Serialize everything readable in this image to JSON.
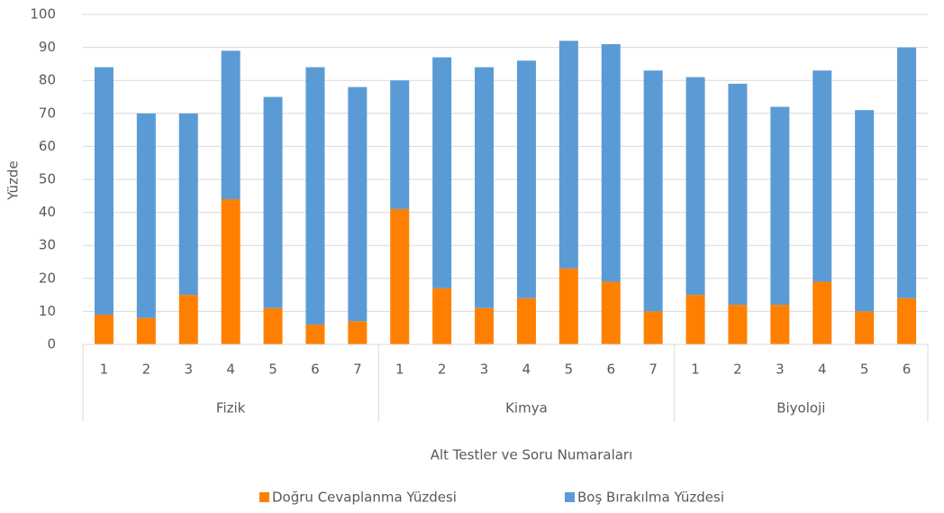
{
  "chart_data": {
    "type": "stacked_bar",
    "x_label": "Alt Testler ve Soru Numaraları",
    "y_label": "Yüzde",
    "groups": [
      {
        "name": "Fizik",
        "categories": [
          "1",
          "2",
          "3",
          "4",
          "5",
          "6",
          "7"
        ]
      },
      {
        "name": "Kimya",
        "categories": [
          "1",
          "2",
          "3",
          "4",
          "5",
          "6",
          "7"
        ]
      },
      {
        "name": "Biyoloji",
        "categories": [
          "1",
          "2",
          "3",
          "4",
          "5",
          "6"
        ]
      }
    ],
    "series": [
      {
        "name": "Doğru Cevaplanma Yüzdesi",
        "color": "#ff8000",
        "values": [
          9,
          8,
          15,
          44,
          11,
          6,
          7,
          41,
          17,
          11,
          14,
          23,
          19,
          10,
          15,
          12,
          12,
          19,
          10,
          14
        ]
      },
      {
        "name": "Boş Bırakılma Yüzdesi",
        "color": "#5b9bd5",
        "values": [
          75,
          62,
          55,
          45,
          64,
          78,
          71,
          39,
          70,
          73,
          72,
          69,
          72,
          73,
          66,
          67,
          60,
          64,
          61,
          76
        ]
      }
    ],
    "ylim": [
      0,
      100
    ],
    "yticks": [
      0,
      10,
      20,
      30,
      40,
      50,
      60,
      70,
      80,
      90,
      100
    ],
    "grid": true,
    "legend": "bottom"
  }
}
